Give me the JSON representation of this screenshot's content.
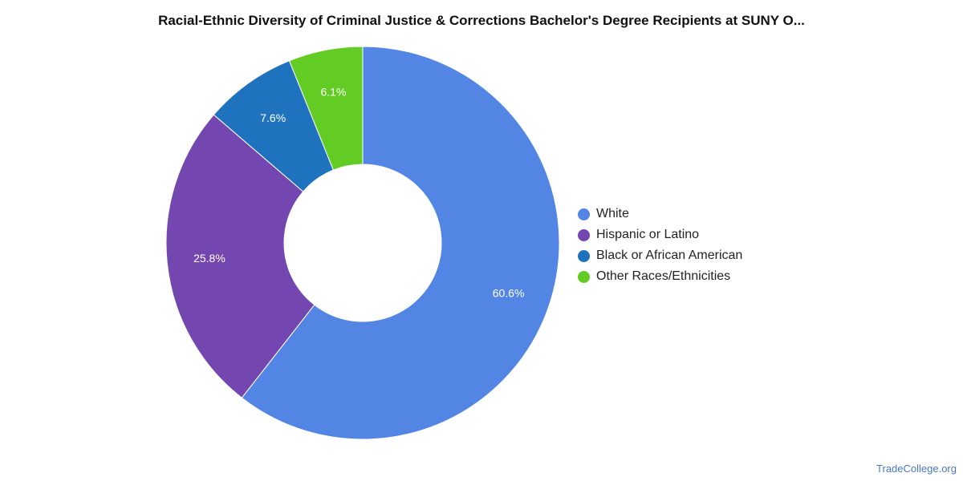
{
  "chart_data": {
    "type": "pie",
    "title": "Racial-Ethnic Diversity of Criminal Justice & Corrections Bachelor's Degree Recipients at SUNY O...",
    "donut": true,
    "legend_position": "right",
    "categories": [
      "White",
      "Hispanic or Latino",
      "Black or African American",
      "Other Races/Ethnicities"
    ],
    "values": [
      60.6,
      25.8,
      7.6,
      6.1
    ],
    "labels": [
      "60.6%",
      "25.8%",
      "7.6%",
      "6.1%"
    ],
    "colors": [
      "#5386e4",
      "#7446b0",
      "#1f73be",
      "#63cc24"
    ]
  },
  "watermark": "TradeCollege.org"
}
